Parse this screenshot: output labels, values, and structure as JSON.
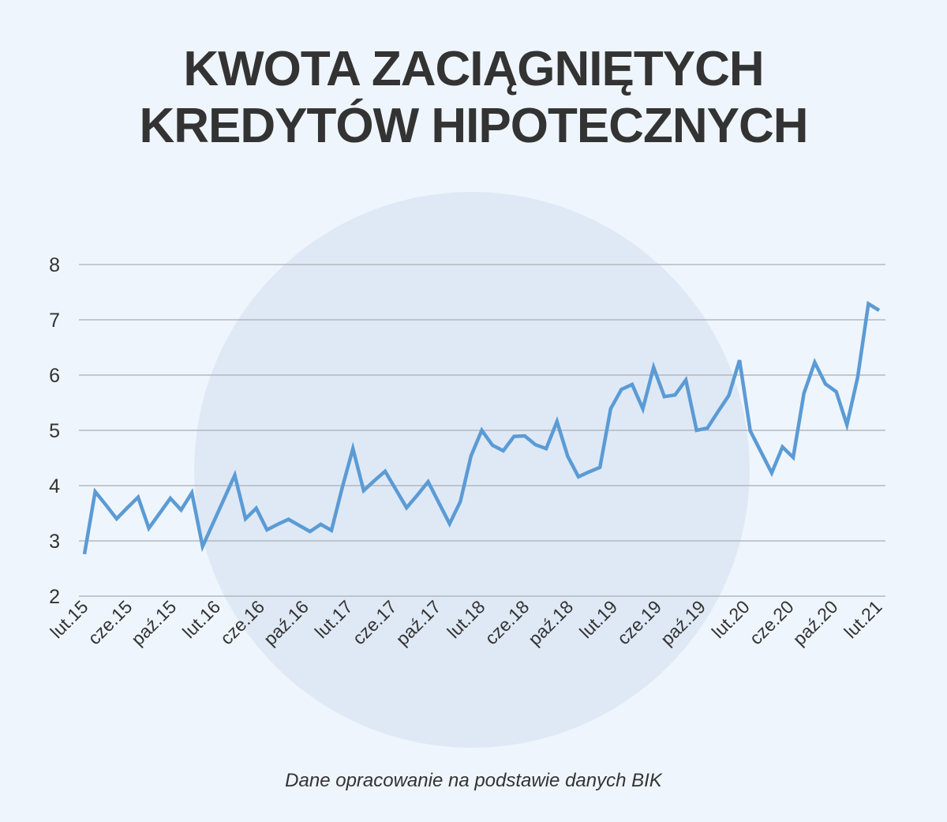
{
  "chart_data": {
    "type": "line",
    "title": [
      "KWOTA ZACIĄGNIĘTYCH",
      "KREDYTÓW HIPOTECZNYCH"
    ],
    "xlabel": "",
    "ylabel": "",
    "ylim": [
      2,
      8
    ],
    "yticks": [
      2,
      3,
      4,
      5,
      6,
      7,
      8
    ],
    "grid": true,
    "x_tick_labels": [
      "lut.15",
      "cze.15",
      "paź.15",
      "lut.16",
      "cze.16",
      "paź.16",
      "lut.17",
      "cze.17",
      "paź.17",
      "lut.18",
      "cze.18",
      "paź.18",
      "lut.19",
      "cze.19",
      "paź.19",
      "lut.20",
      "cze.20",
      "paź.20",
      "lut.21"
    ],
    "series": [
      {
        "color": "#5b9bd5",
        "values": [
          2.76,
          3.89,
          3.65,
          3.4,
          3.6,
          3.79,
          3.23,
          3.5,
          3.77,
          3.56,
          3.87,
          2.9,
          3.33,
          3.76,
          4.19,
          3.4,
          3.59,
          3.2,
          3.3,
          3.39,
          3.28,
          3.17,
          3.3,
          3.19,
          3.96,
          4.67,
          3.91,
          4.09,
          4.26,
          3.93,
          3.6,
          3.83,
          4.07,
          3.69,
          3.31,
          3.71,
          4.54,
          5.0,
          4.73,
          4.63,
          4.89,
          4.9,
          4.74,
          4.67,
          5.16,
          4.53,
          4.16,
          4.25,
          4.33,
          5.39,
          5.74,
          5.83,
          5.39,
          6.14,
          5.61,
          5.64,
          5.91,
          5.0,
          5.04,
          5.34,
          5.63,
          6.27,
          4.99,
          4.61,
          4.23,
          4.7,
          4.51,
          5.67,
          6.23,
          5.84,
          5.7,
          5.1,
          5.96,
          7.29,
          7.17
        ]
      }
    ]
  },
  "footer": "Dane opracowanie na podstawie danych BIK",
  "colors": {
    "background": "#eff5fc",
    "circle": "#dfe9f5",
    "line": "#5b9bd5",
    "grid": "#a9aeb3",
    "text": "#333333"
  }
}
